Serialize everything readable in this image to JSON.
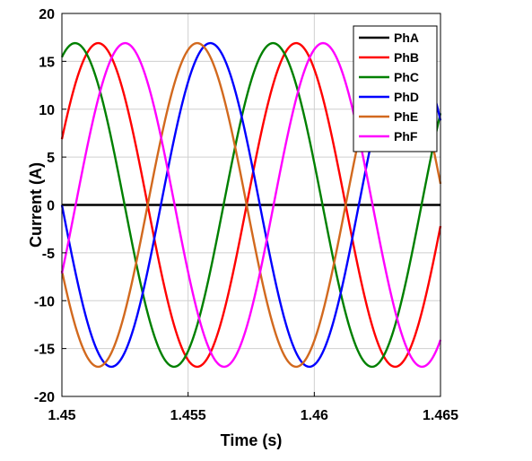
{
  "chart_data": {
    "type": "line",
    "title": "",
    "xlabel": "Time (s)",
    "ylabel": "Current (A)",
    "xlim": [
      1.45,
      1.465
    ],
    "ylim": [
      -20,
      20
    ],
    "xticks": [
      1.45,
      1.455,
      1.46,
      1.465
    ],
    "xtick_labels": [
      "1.45",
      "1.455",
      "1.46",
      "1.465"
    ],
    "yticks": [
      -20,
      -15,
      -10,
      -5,
      0,
      5,
      10,
      15,
      20
    ],
    "ytick_labels": [
      "-20",
      "-15",
      "-10",
      "-5",
      "0",
      "5",
      "10",
      "15",
      "20"
    ],
    "grid": true,
    "legend_position": "top-right",
    "series": [
      {
        "name": "PhA",
        "color": "#000000",
        "amplitude": 0,
        "frequency_hz": 127.5,
        "phase_deg": 0
      },
      {
        "name": "PhB",
        "color": "#ff0000",
        "amplitude": 16.9,
        "frequency_hz": 127.5,
        "phase_deg": 24
      },
      {
        "name": "PhC",
        "color": "#008000",
        "amplitude": 16.9,
        "frequency_hz": 127.5,
        "phase_deg": 66
      },
      {
        "name": "PhD",
        "color": "#0000ff",
        "amplitude": 16.9,
        "frequency_hz": 127.5,
        "phase_deg": 180
      },
      {
        "name": "PhE",
        "color": "#d2691e",
        "amplitude": 16.9,
        "frequency_hz": 127.5,
        "phase_deg": 204
      },
      {
        "name": "PhF",
        "color": "#ff00ff",
        "amplitude": 16.9,
        "frequency_hz": 127.5,
        "phase_deg": 335
      }
    ]
  }
}
